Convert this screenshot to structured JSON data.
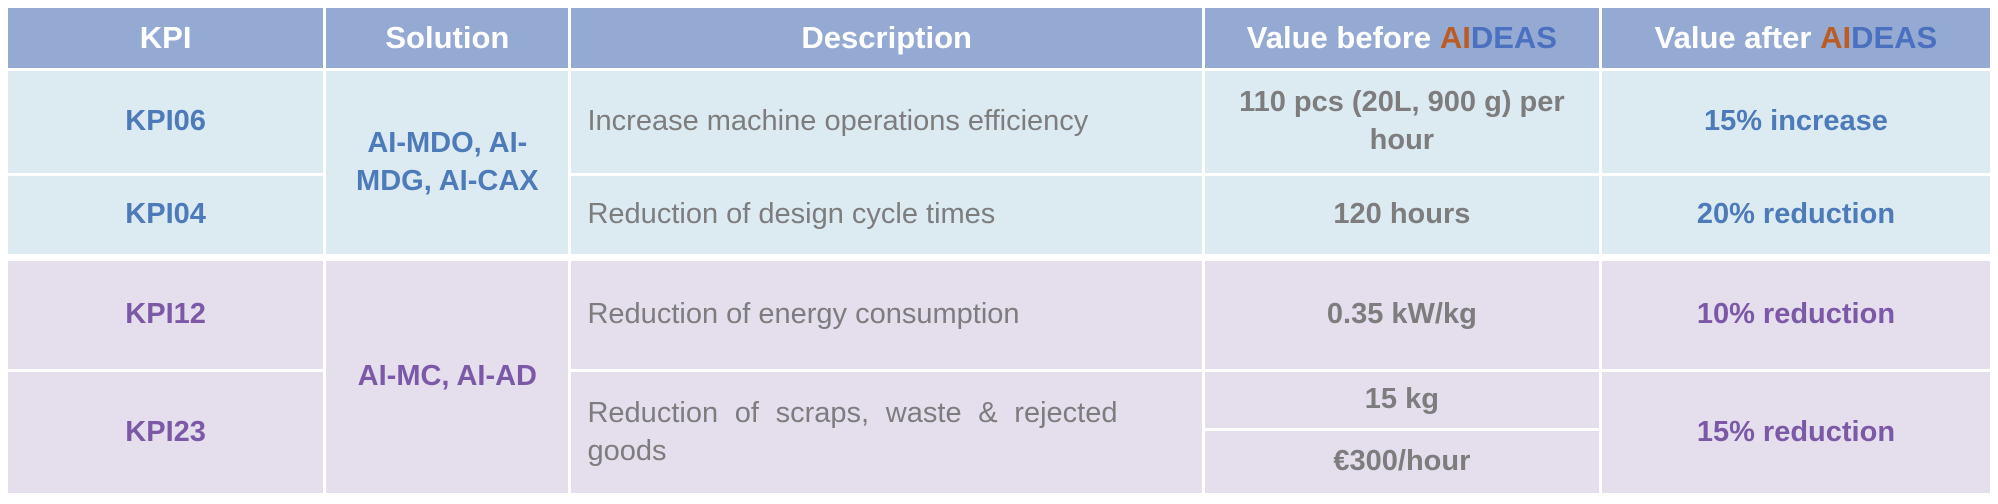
{
  "table": {
    "columns": [
      "KPI",
      "Solution",
      "Description"
    ],
    "header_value_before": {
      "prefix": "Value before",
      "ai": "AI",
      "deas": "DEAS"
    },
    "header_value_after": {
      "prefix": "Value after",
      "ai": "AI",
      "deas": "DEAS"
    },
    "rows": [
      {
        "kpi": "KPI06",
        "solution": "AI-MDO, AI-MDG, AI-CAX",
        "description": "Increase machine operations efficiency",
        "value_before": "110 pcs (20L, 900 g) per hour",
        "value_after": "15% increase"
      },
      {
        "kpi": "KPI04",
        "description": "Reduction of design cycle times",
        "value_before": "120 hours",
        "value_after": "20% reduction"
      },
      {
        "kpi": "KPI12",
        "solution": "AI-MC, AI-AD",
        "description": "Reduction of energy consumption",
        "value_before": "0.35 kW/kg",
        "value_after": "10% reduction"
      },
      {
        "kpi": "KPI23",
        "description": "Reduction of scraps, waste & rejected goods",
        "value_before_parts": [
          "15 kg",
          "€300/hour"
        ],
        "value_after": "15% reduction"
      }
    ]
  },
  "colors": {
    "header_bg": "#95aad3",
    "header_text": "#ffffff",
    "brand_ai_orange": "#bc5c23",
    "brand_deas_blue": "#4b70c0",
    "blue_section_bg": "#dcebf2",
    "purple_section_bg": "#e5deed",
    "blue_accent": "#4d7ab9",
    "purple_accent": "#7b59a6",
    "gray_text": "#7d7d7d",
    "page_bg": "#ffffff"
  }
}
